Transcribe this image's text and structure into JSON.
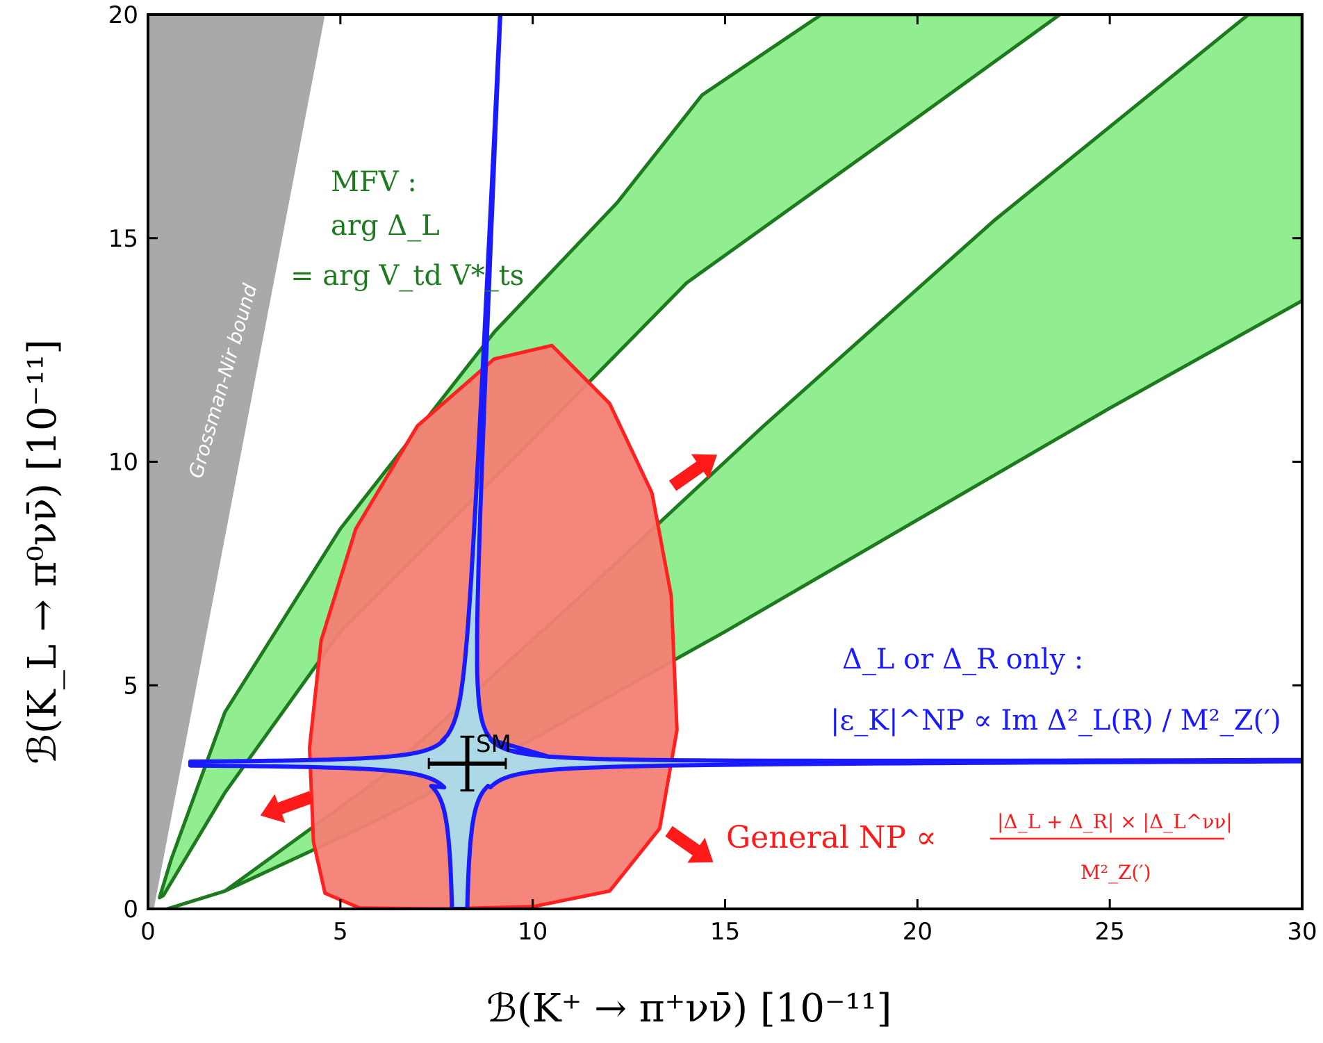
{
  "chart_data": {
    "type": "region-plot",
    "xlabel": "ℬ(K⁺ → π⁺νν̄)   [10⁻¹¹]",
    "ylabel": "ℬ(K_L → π⁰νν̄)   [10⁻¹¹]",
    "xlim": [
      0,
      30
    ],
    "ylim": [
      0,
      20
    ],
    "xticks": [
      "0",
      "5",
      "10",
      "15",
      "20",
      "25",
      "30"
    ],
    "yticks": [
      "0",
      "5",
      "10",
      "15",
      "20"
    ],
    "grid": false,
    "regions": [
      {
        "name": "Grossman-Nir bound",
        "label": "Grossman-Nir bound",
        "color": "#a9a9a9",
        "points": [
          [
            0,
            0
          ],
          [
            0,
            20
          ],
          [
            4.6,
            20
          ],
          [
            0.15,
            0
          ]
        ]
      },
      {
        "name": "MFV band (outer)",
        "color": "#90ee90",
        "edge": "#1e7a1e",
        "points": [
          [
            0.3,
            0.25
          ],
          [
            0.6,
            1.1
          ],
          [
            2,
            4.4
          ],
          [
            5,
            8.5
          ],
          [
            9,
            12.9
          ],
          [
            12.2,
            15.8
          ],
          [
            14.4,
            18.2
          ],
          [
            17.5,
            20
          ],
          [
            23.7,
            20
          ],
          [
            20,
            17.7
          ],
          [
            14,
            14
          ],
          [
            10,
            10.5
          ],
          [
            5,
            6.2
          ],
          [
            2,
            2.6
          ],
          [
            0.4,
            0.3
          ]
        ]
      },
      {
        "name": "MFV band (inner)",
        "color": "#90ee90",
        "edge": "#1e7a1e",
        "points": [
          [
            0.5,
            0.0
          ],
          [
            2,
            0.4
          ],
          [
            6,
            2.0
          ],
          [
            10,
            3.8
          ],
          [
            15,
            6.2
          ],
          [
            20,
            8.7
          ],
          [
            25,
            11.2
          ],
          [
            30,
            13.6
          ],
          [
            30,
            20
          ],
          [
            28.6,
            20
          ],
          [
            22,
            15.4
          ],
          [
            16,
            10.8
          ],
          [
            11,
            6.8
          ],
          [
            6,
            2.9
          ],
          [
            2,
            0.4
          ]
        ]
      },
      {
        "name": "General NP region",
        "color": "#f47f74",
        "edge": "#ff2020",
        "points": [
          [
            7.6,
            0
          ],
          [
            10,
            0.05
          ],
          [
            12,
            0.4
          ],
          [
            13.3,
            1.8
          ],
          [
            13.75,
            4
          ],
          [
            13.6,
            7
          ],
          [
            13.1,
            9.3
          ],
          [
            12,
            11.3
          ],
          [
            10.5,
            12.6
          ],
          [
            9,
            12.3
          ],
          [
            7,
            10.8
          ],
          [
            5.4,
            8.5
          ],
          [
            4.5,
            6
          ],
          [
            4.2,
            3.6
          ],
          [
            4.3,
            1.5
          ],
          [
            4.6,
            0.35
          ],
          [
            5.5,
            0.02
          ],
          [
            7.6,
            0
          ]
        ]
      },
      {
        "name": "Delta_L or Delta_R only",
        "color": "#add8e6",
        "edge": "#1a1aff"
      }
    ],
    "sm_point": {
      "label": "SM",
      "x": 8.3,
      "y": 3.25,
      "xerr": 1.0,
      "yerr": 0.6
    },
    "annotations": {
      "mfv_line1": "MFV :",
      "mfv_line2": "arg Δ_L",
      "mfv_line3": "= arg V_td V*_ts",
      "blue_line1": "Δ_L or Δ_R only :",
      "blue_line2": "|ε_K|^NP ∝ Im Δ²_L(R) / M²_Z(′)",
      "red_main": "General NP ∝",
      "red_num": "|Δ_L + Δ_R| × |Δ_L^νν|",
      "red_den": "M²_Z(′)"
    },
    "colors": {
      "mfv_text": "#1e7a1e",
      "blue_text": "#1a1aff",
      "red_text": "#ff1a1a",
      "gn_text": "#ffffff",
      "arrow": "#ff1a1a"
    }
  }
}
